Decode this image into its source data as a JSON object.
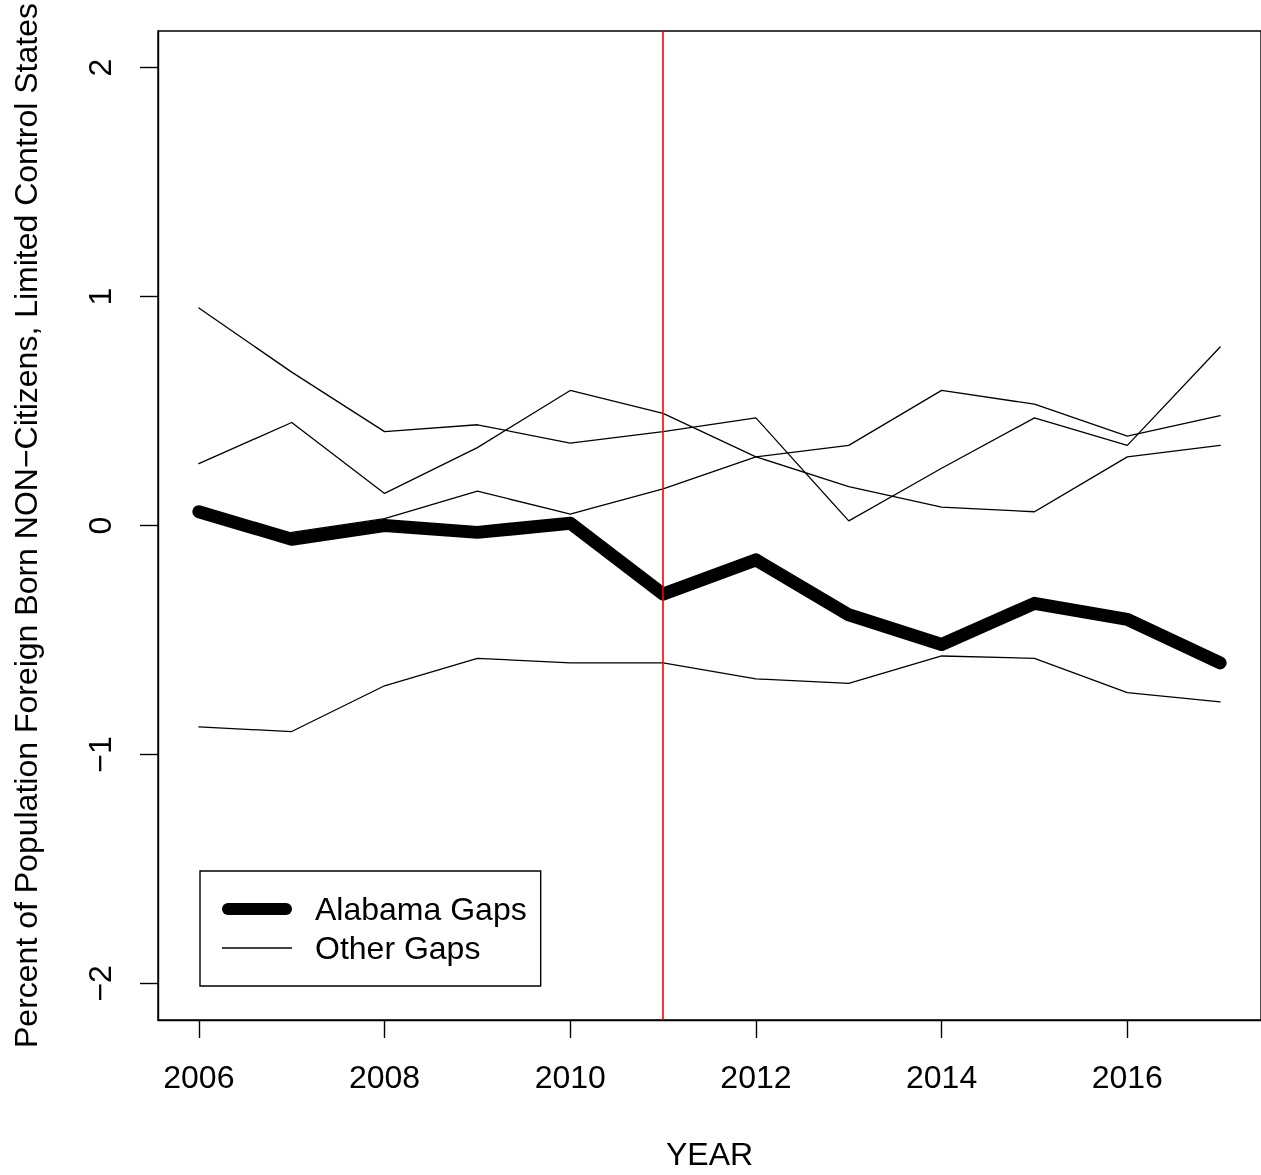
{
  "chart_data": {
    "type": "line",
    "xlabel": "YEAR",
    "ylabel": "Percent of Population Foreign Born NON−Citizens, Limited Control States",
    "x": [
      2006,
      2007,
      2008,
      2009,
      2010,
      2011,
      2012,
      2013,
      2014,
      2015,
      2016,
      2017
    ],
    "series": [
      {
        "name": "Alabama Gaps",
        "color": "#000000",
        "values": [
          0.06,
          -0.06,
          0.0,
          -0.03,
          0.01,
          -0.3,
          -0.15,
          -0.39,
          -0.52,
          -0.34,
          -0.41,
          -0.6
        ]
      },
      {
        "name": "Other Gaps",
        "color": "#000000",
        "values": [
          0.95,
          0.67,
          0.41,
          0.44,
          0.36,
          0.41,
          0.47,
          0.02,
          0.25,
          0.47,
          0.35,
          0.78
        ]
      },
      {
        "color": "#000000",
        "values": [
          0.27,
          0.45,
          0.14,
          0.34,
          0.59,
          0.49,
          0.3,
          0.17,
          0.08,
          0.06,
          0.3,
          0.35
        ]
      },
      {
        "color": "#000000",
        "values": [
          null,
          -0.03,
          0.03,
          0.15,
          0.05,
          0.16,
          0.3,
          0.35,
          0.59,
          0.53,
          0.39,
          0.48
        ]
      },
      {
        "color": "#000000",
        "values": [
          -0.88,
          -0.9,
          -0.7,
          -0.58,
          -0.6,
          -0.6,
          -0.67,
          -0.69,
          -0.57,
          -0.58,
          -0.73,
          -0.77
        ]
      }
    ],
    "xlim": [
      2005.56,
      2017.44
    ],
    "ylim": [
      -2.16,
      2.16
    ],
    "xticks": [
      2006,
      2008,
      2010,
      2012,
      2014,
      2016
    ],
    "yticks": [
      -2,
      -1,
      0,
      1,
      2
    ],
    "ref_lines": [
      {
        "axis": "x",
        "value": 2011,
        "color": "#ff0000"
      }
    ],
    "grid": false,
    "legend": "bottom left",
    "marker": "none",
    "line_style": "solid"
  }
}
